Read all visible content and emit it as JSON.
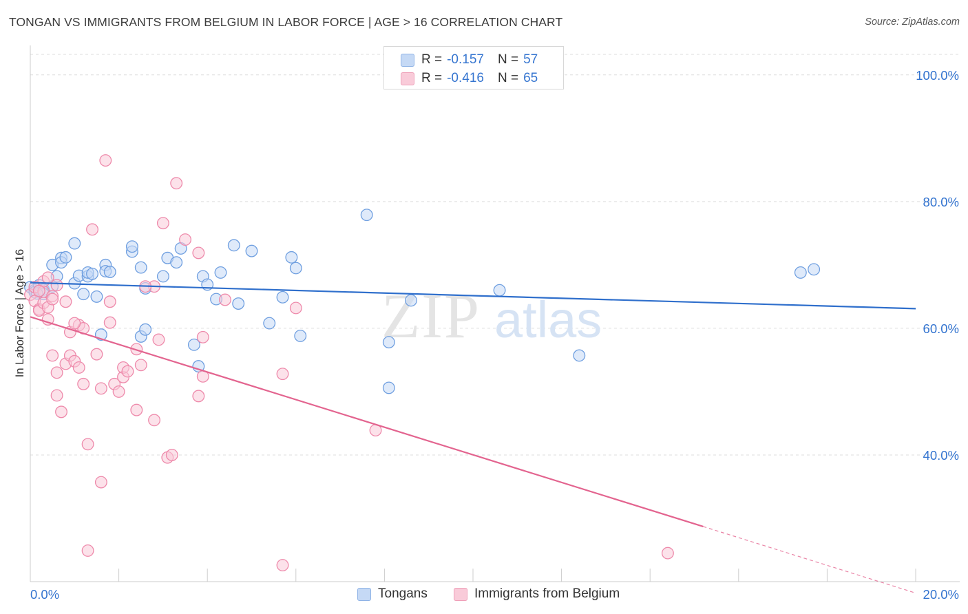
{
  "header": {
    "title": "TONGAN VS IMMIGRANTS FROM BELGIUM IN LABOR FORCE | AGE > 16 CORRELATION CHART",
    "source": "Source: ZipAtlas.com"
  },
  "watermark": {
    "zip": "ZIP",
    "atlas": "atlas"
  },
  "legend": {
    "r_label": "R =",
    "n_label": "N =",
    "tongans": {
      "r": "-0.157",
      "n": "57"
    },
    "belgium": {
      "r": "-0.416",
      "n": "65"
    }
  },
  "bottom_legend": {
    "tongans": "Tongans",
    "belgium": "Immigrants from Belgium"
  },
  "colors": {
    "tongans_fill": "#c5d9f5",
    "tongans_stroke": "#6f9fe0",
    "tongans_line": "#2f6fcc",
    "belgium_fill": "#f9cbd9",
    "belgium_stroke": "#ee8aab",
    "belgium_line": "#e3648f",
    "axis_text": "#3575d0",
    "grid": "#dddddd"
  },
  "chart_data": {
    "type": "scatter",
    "title": "TONGAN VS IMMIGRANTS FROM BELGIUM IN LABOR FORCE | AGE > 16 CORRELATION CHART",
    "xlabel": "",
    "ylabel": "In Labor Force | Age > 16",
    "xlim": [
      0,
      20
    ],
    "ylim": [
      20,
      104
    ],
    "x_tick_labels": [
      {
        "value": 0,
        "label": "0.0%"
      },
      {
        "value": 20,
        "label": "20.0%"
      }
    ],
    "y_tick_labels": [
      {
        "value": 100,
        "label": "100.0%"
      },
      {
        "value": 80,
        "label": "80.0%"
      },
      {
        "value": 60,
        "label": "60.0%"
      },
      {
        "value": 40,
        "label": "40.0%"
      }
    ],
    "y_gridlines": [
      100,
      80,
      60,
      40
    ],
    "x_minor_ticks": [
      2,
      4,
      6,
      8,
      10,
      12,
      14,
      16,
      18,
      20
    ],
    "series": [
      {
        "name": "Tongans",
        "r": -0.157,
        "n": 57,
        "trend": {
          "x0": 0,
          "y0": 67.2,
          "x1": 20,
          "y1": 63.1
        },
        "points": [
          [
            0.0,
            66.5
          ],
          [
            0.1,
            66.0
          ],
          [
            0.1,
            65.7
          ],
          [
            0.2,
            66.8
          ],
          [
            0.3,
            66.1
          ],
          [
            0.3,
            65.4
          ],
          [
            0.5,
            70.0
          ],
          [
            0.5,
            66.6
          ],
          [
            0.6,
            68.2
          ],
          [
            0.7,
            71.1
          ],
          [
            0.7,
            70.4
          ],
          [
            0.8,
            71.2
          ],
          [
            1.0,
            73.4
          ],
          [
            1.0,
            67.1
          ],
          [
            1.1,
            68.3
          ],
          [
            1.2,
            65.4
          ],
          [
            1.3,
            68.2
          ],
          [
            1.3,
            68.8
          ],
          [
            1.4,
            68.6
          ],
          [
            1.5,
            65.0
          ],
          [
            1.6,
            59.0
          ],
          [
            1.7,
            70.0
          ],
          [
            1.7,
            69.0
          ],
          [
            2.3,
            72.1
          ],
          [
            2.3,
            72.9
          ],
          [
            2.5,
            69.6
          ],
          [
            2.6,
            66.3
          ],
          [
            2.5,
            58.7
          ],
          [
            2.6,
            59.8
          ],
          [
            3.0,
            68.2
          ],
          [
            3.1,
            71.1
          ],
          [
            3.3,
            70.4
          ],
          [
            3.4,
            72.6
          ],
          [
            3.7,
            57.4
          ],
          [
            3.8,
            54.0
          ],
          [
            3.9,
            68.2
          ],
          [
            4.0,
            66.9
          ],
          [
            4.2,
            64.6
          ],
          [
            4.3,
            68.8
          ],
          [
            4.6,
            73.1
          ],
          [
            4.7,
            63.9
          ],
          [
            5.0,
            72.2
          ],
          [
            5.4,
            60.8
          ],
          [
            5.7,
            64.9
          ],
          [
            5.9,
            71.2
          ],
          [
            6.0,
            69.5
          ],
          [
            6.1,
            58.8
          ],
          [
            7.6,
            77.9
          ],
          [
            8.1,
            57.8
          ],
          [
            8.1,
            50.6
          ],
          [
            8.6,
            64.4
          ],
          [
            10.6,
            66.0
          ],
          [
            12.4,
            55.7
          ],
          [
            17.4,
            68.8
          ],
          [
            17.7,
            69.3
          ],
          [
            0.15,
            65.5
          ],
          [
            1.8,
            68.9
          ]
        ]
      },
      {
        "name": "Immigrants from Belgium",
        "r": -0.416,
        "n": 65,
        "trend": {
          "x0": 0,
          "y0": 61.8,
          "x1": 15.2,
          "y1": 28.7,
          "dash_x1": 20,
          "dash_y1": 18.2
        },
        "points": [
          [
            0.0,
            65.3
          ],
          [
            0.1,
            64.3
          ],
          [
            0.1,
            66.5
          ],
          [
            0.2,
            63.0
          ],
          [
            0.2,
            62.8
          ],
          [
            0.3,
            64.0
          ],
          [
            0.3,
            65.8
          ],
          [
            0.3,
            67.4
          ],
          [
            0.4,
            63.3
          ],
          [
            0.4,
            68.0
          ],
          [
            0.4,
            61.4
          ],
          [
            0.5,
            65.1
          ],
          [
            0.5,
            64.6
          ],
          [
            0.5,
            55.7
          ],
          [
            0.6,
            53.0
          ],
          [
            0.6,
            49.4
          ],
          [
            0.7,
            46.8
          ],
          [
            0.8,
            54.4
          ],
          [
            0.8,
            64.2
          ],
          [
            0.9,
            59.4
          ],
          [
            0.9,
            55.7
          ],
          [
            1.0,
            54.8
          ],
          [
            1.1,
            53.8
          ],
          [
            1.1,
            60.5
          ],
          [
            1.2,
            51.2
          ],
          [
            1.2,
            60.0
          ],
          [
            1.3,
            41.7
          ],
          [
            1.4,
            75.6
          ],
          [
            1.5,
            55.9
          ],
          [
            1.6,
            50.5
          ],
          [
            1.6,
            35.7
          ],
          [
            1.7,
            86.5
          ],
          [
            1.8,
            60.9
          ],
          [
            1.8,
            64.2
          ],
          [
            1.9,
            51.2
          ],
          [
            2.0,
            50.0
          ],
          [
            2.1,
            52.3
          ],
          [
            2.1,
            53.8
          ],
          [
            2.2,
            53.2
          ],
          [
            2.4,
            47.1
          ],
          [
            2.4,
            56.7
          ],
          [
            2.5,
            54.2
          ],
          [
            2.8,
            66.6
          ],
          [
            2.8,
            45.5
          ],
          [
            2.9,
            58.2
          ],
          [
            3.0,
            76.6
          ],
          [
            3.1,
            39.6
          ],
          [
            3.3,
            82.9
          ],
          [
            3.5,
            74.0
          ],
          [
            3.8,
            71.9
          ],
          [
            3.8,
            49.3
          ],
          [
            3.9,
            52.4
          ],
          [
            3.9,
            58.6
          ],
          [
            4.4,
            64.5
          ],
          [
            5.7,
            52.8
          ],
          [
            6.0,
            63.2
          ],
          [
            7.8,
            43.9
          ],
          [
            1.3,
            24.9
          ],
          [
            5.7,
            22.6
          ],
          [
            14.4,
            24.5
          ],
          [
            0.6,
            66.8
          ],
          [
            1.0,
            60.8
          ],
          [
            0.2,
            65.9
          ],
          [
            3.2,
            40.0
          ],
          [
            2.6,
            66.6
          ]
        ]
      }
    ]
  }
}
